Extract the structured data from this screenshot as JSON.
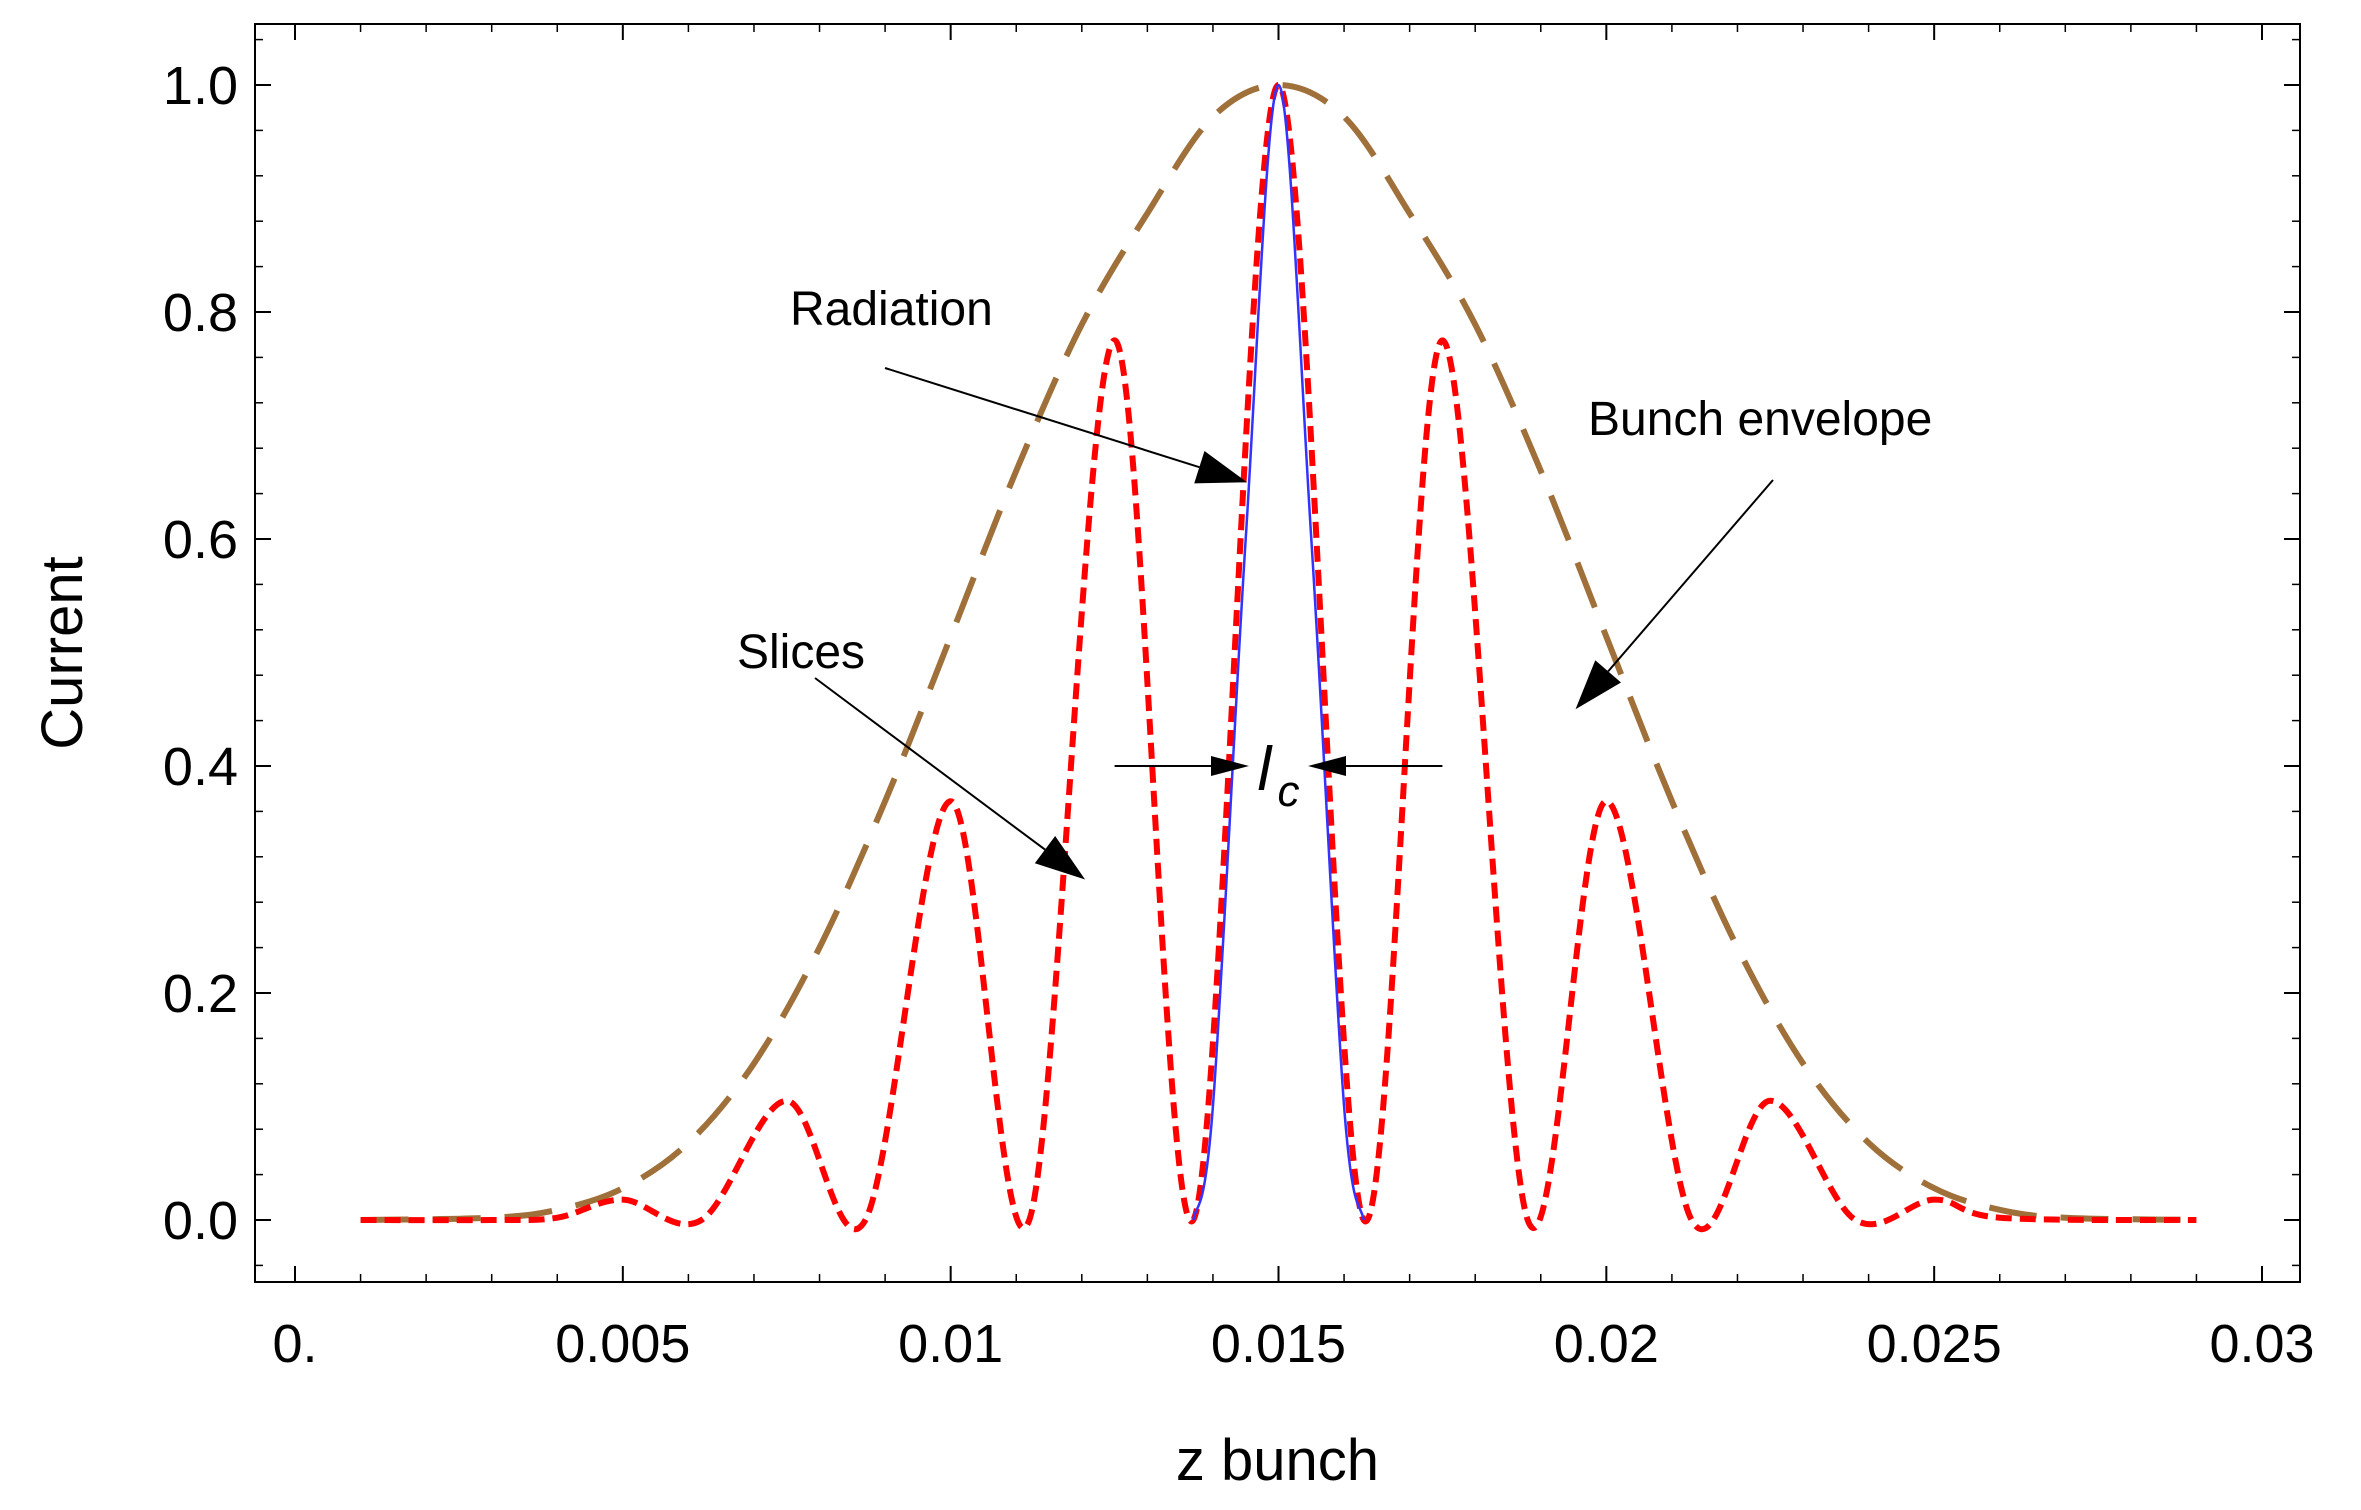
{
  "chart_data": {
    "type": "line",
    "title": "",
    "xlabel": "z bunch",
    "ylabel": "Current",
    "xlim": [
      0,
      0.03
    ],
    "ylim": [
      -0.05,
      1.05
    ],
    "x_ticks": [
      0,
      0.005,
      0.01,
      0.015,
      0.02,
      0.025,
      0.03
    ],
    "x_tick_labels": [
      "0.",
      "0.005",
      "0.01",
      "0.015",
      "0.02",
      "0.025",
      "0.03"
    ],
    "y_ticks": [
      0,
      0.2,
      0.4,
      0.6,
      0.8,
      1.0
    ],
    "y_tick_labels": [
      "0.0",
      "0.2",
      "0.4",
      "0.6",
      "0.8",
      "1.0"
    ],
    "series": [
      {
        "name": "Bunch envelope",
        "style": "long-dash",
        "color": "#a0703a",
        "x": [
          0.001,
          0.003,
          0.004,
          0.005,
          0.006,
          0.007,
          0.008,
          0.009,
          0.01,
          0.011,
          0.012,
          0.013,
          0.014,
          0.015,
          0.016,
          0.017,
          0.018,
          0.019,
          0.02,
          0.021,
          0.022,
          0.023,
          0.024,
          0.025,
          0.026,
          0.027,
          0.029
        ],
        "values": [
          0.0,
          0.002,
          0.009,
          0.028,
          0.068,
          0.138,
          0.24,
          0.369,
          0.514,
          0.66,
          0.789,
          0.887,
          0.972,
          1.0,
          0.972,
          0.887,
          0.789,
          0.66,
          0.514,
          0.369,
          0.24,
          0.138,
          0.068,
          0.028,
          0.009,
          0.002,
          0.0
        ]
      },
      {
        "name": "Slices",
        "style": "short-dash",
        "color": "#ff0000",
        "x": [
          0.001,
          0.003,
          0.004,
          0.005,
          0.0062,
          0.0075,
          0.0087,
          0.01,
          0.0112,
          0.0125,
          0.0137,
          0.015,
          0.0163,
          0.0175,
          0.0188,
          0.02,
          0.0213,
          0.0225,
          0.0238,
          0.025,
          0.026,
          0.029
        ],
        "values": [
          0.0,
          0.0,
          0.002,
          0.018,
          0.0,
          0.105,
          0.0,
          0.369,
          0.0,
          0.775,
          0.0,
          1.0,
          0.0,
          0.775,
          0.0,
          0.369,
          0.0,
          0.105,
          0.0,
          0.018,
          0.002,
          0.0
        ]
      },
      {
        "name": "Radiation",
        "style": "solid",
        "color": "#3333ff",
        "x": [
          0.0137,
          0.014,
          0.0145,
          0.015,
          0.0155,
          0.016,
          0.0163
        ],
        "values": [
          0.0,
          0.1,
          0.6,
          1.0,
          0.6,
          0.1,
          0.0
        ]
      }
    ],
    "annotations": [
      {
        "text": "Radiation",
        "target_x": 0.01452,
        "target_y": 0.65
      },
      {
        "text": "Bunch envelope",
        "target_x": 0.01953,
        "target_y": 0.45
      },
      {
        "text": "Slices",
        "target_x": 0.01205,
        "target_y": 0.3
      },
      {
        "text": "l",
        "subscript": "c",
        "y": 0.4,
        "from_x": 0.0125,
        "to_x": 0.0175
      }
    ]
  }
}
